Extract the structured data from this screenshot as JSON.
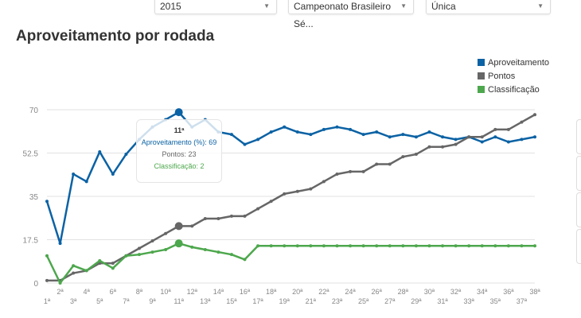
{
  "filters": {
    "year": "2015",
    "competition": "Campeonato Brasileiro Sé...",
    "phase": "Única"
  },
  "chart_data": {
    "type": "line",
    "title": "Aproveitamento por rodada",
    "categories": [
      "1ª",
      "2ª",
      "3ª",
      "4ª",
      "5ª",
      "6ª",
      "7ª",
      "8ª",
      "9ª",
      "10ª",
      "11ª",
      "12ª",
      "13ª",
      "14ª",
      "15ª",
      "16ª",
      "17ª",
      "18ª",
      "19ª",
      "20ª",
      "21ª",
      "22ª",
      "23ª",
      "24ª",
      "25ª",
      "26ª",
      "27ª",
      "28ª",
      "29ª",
      "30ª",
      "31ª",
      "32ª",
      "33ª",
      "34ª",
      "35ª",
      "36ª",
      "37ª",
      "38ª"
    ],
    "yticks": [
      "0",
      "17.5",
      "35",
      "52.5",
      "70"
    ],
    "ylim": [
      0,
      70
    ],
    "legend_position": "top-right",
    "series": [
      {
        "name": "Aproveitamento",
        "color": "#0b62a4",
        "values": [
          33,
          16,
          44,
          41,
          53,
          44,
          52,
          58,
          63,
          66,
          69,
          63,
          66,
          61,
          60,
          56,
          58,
          61,
          63,
          61,
          60,
          62,
          63,
          62,
          60,
          61,
          59,
          60,
          59,
          61,
          59,
          58,
          59,
          57,
          59,
          57,
          58,
          59
        ]
      },
      {
        "name": "Pontos",
        "color": "#666666",
        "values": [
          1,
          1,
          4,
          5,
          8,
          8,
          11,
          14,
          17,
          20,
          23,
          23,
          26,
          26,
          27,
          27,
          30,
          33,
          36,
          37,
          38,
          41,
          44,
          45,
          45,
          48,
          48,
          51,
          52,
          55,
          55,
          56,
          59,
          59,
          62,
          62,
          65,
          68
        ]
      },
      {
        "name": "Classificação",
        "color": "#4da74d",
        "values": [
          11,
          0,
          7,
          5,
          9,
          6,
          11,
          11.5,
          12.5,
          13.5,
          16,
          14.5,
          13.5,
          12.5,
          11.5,
          9.5,
          15,
          15,
          15,
          15,
          15,
          15,
          15,
          15,
          15,
          15,
          15,
          15,
          15,
          15,
          15,
          15,
          15,
          15,
          15,
          15,
          15,
          15
        ]
      }
    ],
    "tooltip": {
      "title": "11ª",
      "index": 10,
      "lines": [
        "Aproveitamento (%): 69",
        "Pontos: 23",
        "Classificação: 2"
      ]
    }
  }
}
